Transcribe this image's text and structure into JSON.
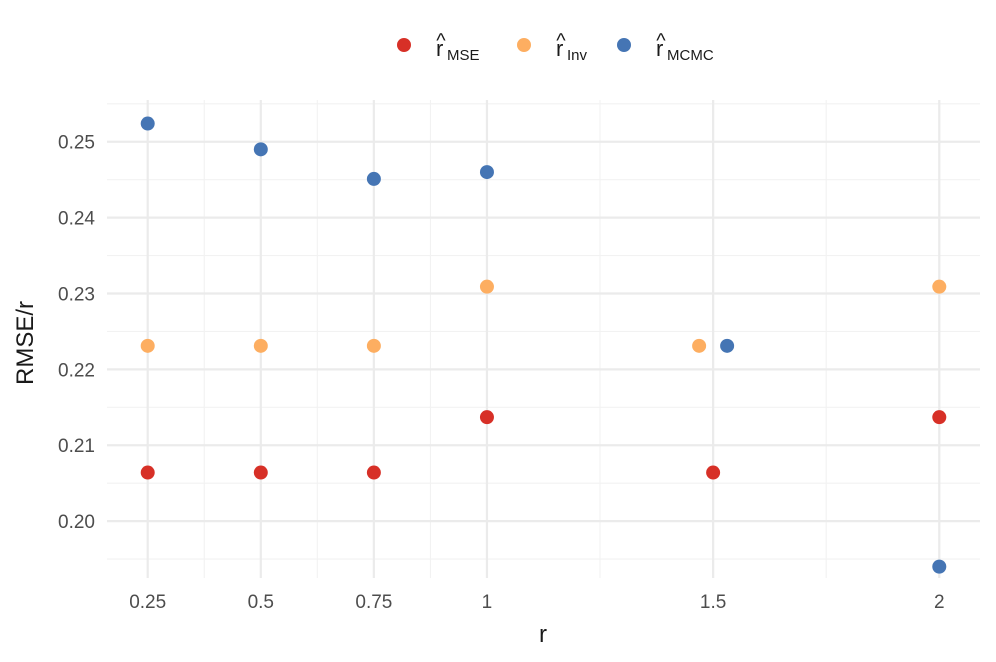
{
  "chart_data": {
    "type": "scatter",
    "title": "",
    "xlabel": "r",
    "ylabel": "RMSE/r",
    "x_ticks": [
      "0.25",
      "0.5",
      "0.75",
      "1",
      "1.5",
      "2"
    ],
    "x_tick_values": [
      0.25,
      0.5,
      0.75,
      1,
      1.5,
      2
    ],
    "y_ticks": [
      "0.20",
      "0.21",
      "0.22",
      "0.23",
      "0.24",
      "0.25"
    ],
    "y_tick_values": [
      0.2,
      0.21,
      0.22,
      0.23,
      0.24,
      0.25
    ],
    "xlim": [
      0.16,
      2.09
    ],
    "ylim": [
      0.1925,
      0.2555
    ],
    "grid": true,
    "legend_position": "top",
    "series": [
      {
        "label_base": "r",
        "label_sub": "MSE",
        "color": "#D73027",
        "points": [
          {
            "x": 0.25,
            "y": 0.2064
          },
          {
            "x": 0.5,
            "y": 0.2064
          },
          {
            "x": 0.75,
            "y": 0.2064
          },
          {
            "x": 1,
            "y": 0.2137
          },
          {
            "x": 1.5,
            "y": 0.2064
          },
          {
            "x": 2,
            "y": 0.2137
          }
        ]
      },
      {
        "label_base": "r",
        "label_sub": "Inv",
        "color": "#FDAE61",
        "points": [
          {
            "x": 0.25,
            "y": 0.2231
          },
          {
            "x": 0.5,
            "y": 0.2231
          },
          {
            "x": 0.75,
            "y": 0.2231
          },
          {
            "x": 1,
            "y": 0.2309
          },
          {
            "x": 1.5,
            "y": 0.2231
          },
          {
            "x": 2,
            "y": 0.2309
          }
        ]
      },
      {
        "label_base": "r",
        "label_sub": "MCMC",
        "color": "#4575B4",
        "points": [
          {
            "x": 0.25,
            "y": 0.2524
          },
          {
            "x": 0.5,
            "y": 0.249
          },
          {
            "x": 0.75,
            "y": 0.2451
          },
          {
            "x": 1,
            "y": 0.246
          },
          {
            "x": 1.5,
            "y": 0.2231
          },
          {
            "x": 2,
            "y": 0.194
          }
        ]
      }
    ]
  }
}
